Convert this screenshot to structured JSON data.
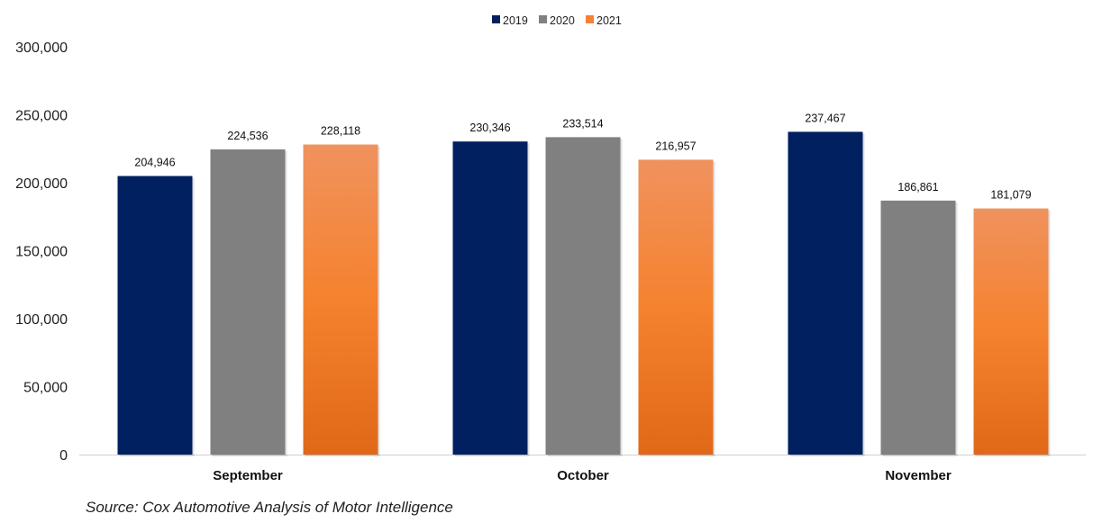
{
  "chart_data": {
    "type": "bar",
    "title": "",
    "xlabel": "",
    "ylabel": "",
    "ylim": [
      0,
      300000
    ],
    "yticks": [
      0,
      50000,
      100000,
      150000,
      200000,
      250000,
      300000
    ],
    "ytick_labels": [
      "0",
      "50,000",
      "100,000",
      "150,000",
      "200,000",
      "250,000",
      "300,000"
    ],
    "categories": [
      "September",
      "October",
      "November"
    ],
    "series": [
      {
        "name": "2019",
        "color": "#002060",
        "values": [
          204946,
          230346,
          237467
        ]
      },
      {
        "name": "2020",
        "color": "#808080",
        "values": [
          224536,
          233514,
          186861
        ]
      },
      {
        "name": "2021",
        "color": "#F58232",
        "values": [
          228118,
          216957,
          181079
        ]
      }
    ],
    "legend_position": "top-center",
    "grid": false
  },
  "source": "Source: Cox Automotive Analysis of Motor Intelligence"
}
